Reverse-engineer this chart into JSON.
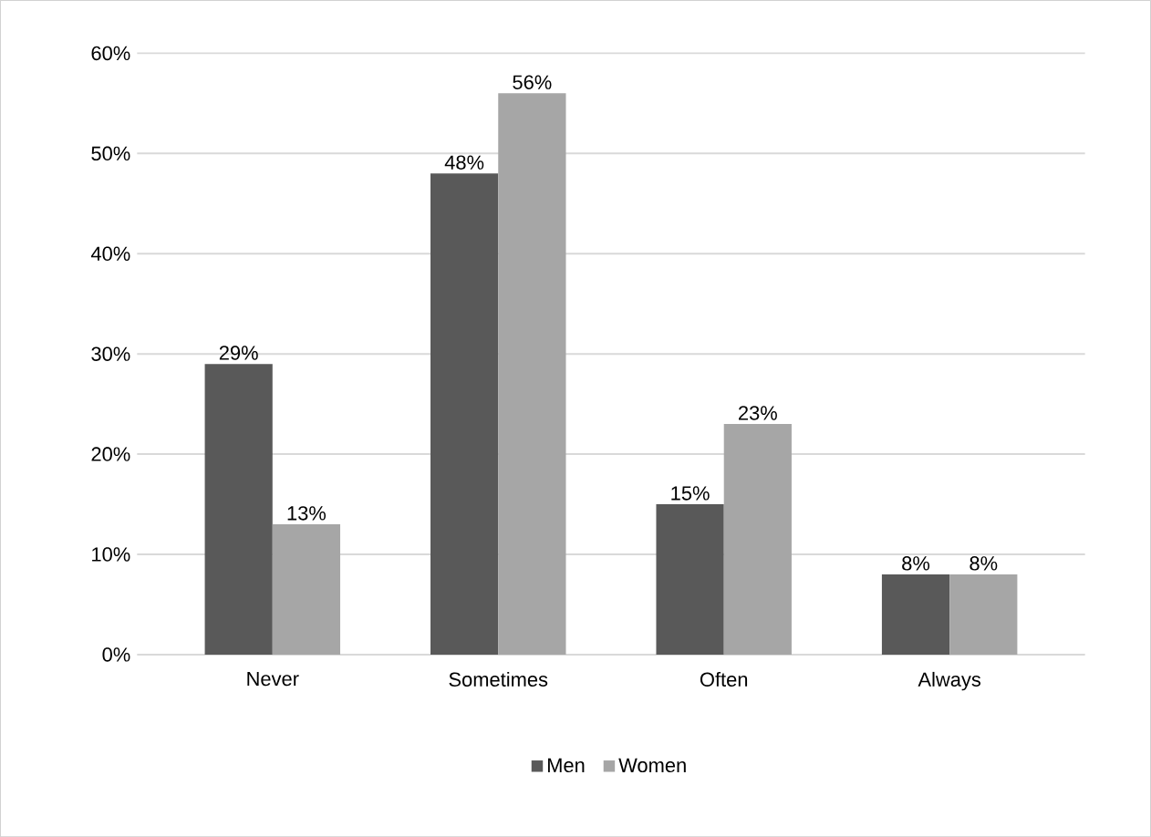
{
  "chart_data": {
    "type": "bar",
    "categories": [
      "Never",
      "Sometimes",
      "Often",
      "Always"
    ],
    "series": [
      {
        "name": "Men",
        "color": "#595959",
        "values": [
          29,
          48,
          15,
          8
        ],
        "value_labels": [
          "29%",
          "48%",
          "15%",
          "8%"
        ]
      },
      {
        "name": "Women",
        "color": "#a6a6a6",
        "values": [
          13,
          56,
          23,
          8
        ],
        "value_labels": [
          "13%",
          "56%",
          "23%",
          "8%"
        ]
      }
    ],
    "ylim": [
      0,
      60
    ],
    "yticks": [
      {
        "value": 0,
        "label": "0%"
      },
      {
        "value": 10,
        "label": "10%"
      },
      {
        "value": 20,
        "label": "20%"
      },
      {
        "value": 30,
        "label": "30%"
      },
      {
        "value": 40,
        "label": "40%"
      },
      {
        "value": 50,
        "label": "50%"
      },
      {
        "value": 60,
        "label": "60%"
      }
    ],
    "grid": "y",
    "legend": "bottom"
  }
}
